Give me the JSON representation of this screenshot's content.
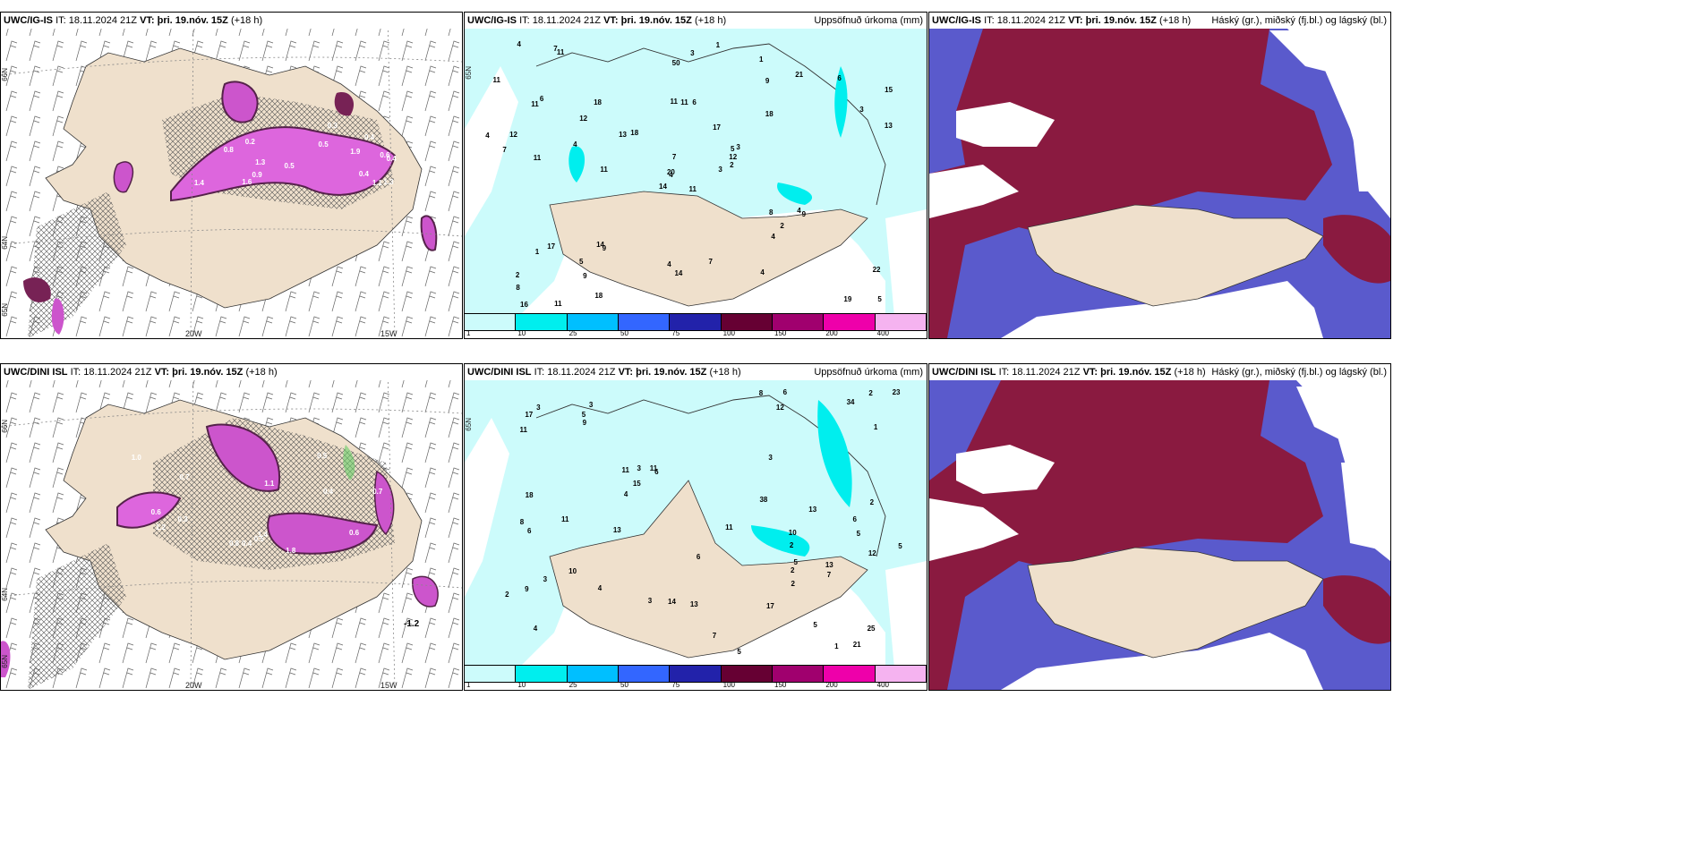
{
  "panels_top": {
    "wind": {
      "model": "UWC/IG-IS",
      "it_label": "IT:",
      "it_value": "18.11.2024 21Z",
      "vt_label": "VT:",
      "vt_value": "þri. 19.nóv. 15Z",
      "lead": "(+18 h)",
      "lon1": "20W",
      "lon2": "15W",
      "lat1": "66N",
      "lat2": "64N",
      "lat3": "65N"
    },
    "precip": {
      "model": "UWC/IG-IS",
      "it_label": "IT:",
      "it_value": "18.11.2024 21Z",
      "vt_label": "VT:",
      "vt_value": "þri. 19.nóv. 15Z",
      "lead": "(+18 h)",
      "title": "Uppsöfnuð úrkoma (mm)",
      "lat": "65N"
    },
    "cloud": {
      "model": "UWC/IG-IS",
      "it_label": "IT:",
      "it_value": "18.11.2024 21Z",
      "vt_label": "VT:",
      "vt_value": "þri. 19.nóv. 15Z",
      "lead": "(+18 h)",
      "title": "Háský (gr.), miðský (fj.bl.) og lágský (bl.)"
    }
  },
  "panels_bottom": {
    "wind": {
      "model": "UWC/DINI ISL",
      "it_label": "IT:",
      "it_value": "18.11.2024 21Z",
      "vt_label": "VT:",
      "vt_value": "þri. 19.nóv. 15Z",
      "lead": "(+18 h)",
      "lon1": "20W",
      "lon2": "15W",
      "lat1": "66N",
      "lat2": "64N",
      "lat3": "65N",
      "value_label": "-1.2"
    },
    "precip": {
      "model": "UWC/DINI ISL",
      "it_label": "IT:",
      "it_value": "18.11.2024 21Z",
      "vt_label": "VT:",
      "vt_value": "þri. 19.nóv. 15Z",
      "lead": "(+18 h)",
      "title": "Uppsöfnuð úrkoma (mm)",
      "lat": "65N"
    },
    "cloud": {
      "model": "UWC/DINI ISL",
      "it_label": "IT:",
      "it_value": "18.11.2024 21Z",
      "vt_label": "VT:",
      "vt_value": "þri. 19.nóv. 15Z",
      "lead": "(+18 h)",
      "title": "Háský (gr.), miðský (fj.bl.) og lágský (bl.)"
    }
  },
  "legend": {
    "colors": [
      "#ccfbfb",
      "#00eeee",
      "#00bfff",
      "#3366ff",
      "#2222aa",
      "#660033",
      "#a0006e",
      "#ee00aa",
      "#f5b3f0"
    ],
    "labels": [
      "1",
      "10",
      "25",
      "50",
      "75",
      "100",
      "150",
      "200",
      "400"
    ]
  },
  "precip_top_values": [
    "11",
    "11",
    "4",
    "2",
    "5",
    "9",
    "1",
    "6",
    "9",
    "3",
    "11",
    "5",
    "11",
    "15",
    "14",
    "18",
    "11",
    "11",
    "17",
    "17",
    "18",
    "8",
    "9",
    "11",
    "3",
    "9",
    "6",
    "50",
    "7",
    "8",
    "13",
    "20",
    "4",
    "7",
    "18",
    "21",
    "14",
    "19",
    "22",
    "4",
    "1",
    "13",
    "4",
    "4",
    "18",
    "4",
    "12",
    "16",
    "14",
    "2",
    "1",
    "3",
    "11",
    "2",
    "4",
    "5",
    "7",
    "4",
    "7",
    "6",
    "3",
    "11",
    "12",
    "12"
  ],
  "precip_bottom_values": [
    "2",
    "5",
    "4",
    "3",
    "6",
    "5",
    "9",
    "12",
    "11",
    "5",
    "11",
    "8",
    "17",
    "25",
    "3",
    "2",
    "6",
    "11",
    "11",
    "10",
    "23",
    "34",
    "4",
    "12",
    "8",
    "5",
    "5",
    "6",
    "9",
    "13",
    "7",
    "17",
    "15",
    "13",
    "6",
    "7",
    "2",
    "11",
    "13",
    "3",
    "1",
    "6",
    "21",
    "14",
    "13",
    "4",
    "2",
    "3",
    "38",
    "18",
    "5",
    "3",
    "2",
    "10",
    "2",
    "1",
    "3"
  ],
  "wind_top_values": [
    "0.2",
    "0.6",
    "0.5",
    "0.4",
    "1.3",
    "1.3",
    "0.9",
    "0.3",
    "1.1",
    "0.4",
    "0.8",
    "0.4",
    "1.9",
    "1.6",
    "1.4",
    "0.5"
  ],
  "wind_bottom_values": [
    "0.8",
    "1.4",
    "1.1",
    "1.0",
    "0.7",
    "1.2",
    "0.5",
    "0.6",
    "0.4",
    "0.7",
    "0.3",
    "0.6",
    "0.4",
    "1.8",
    "0.5"
  ]
}
